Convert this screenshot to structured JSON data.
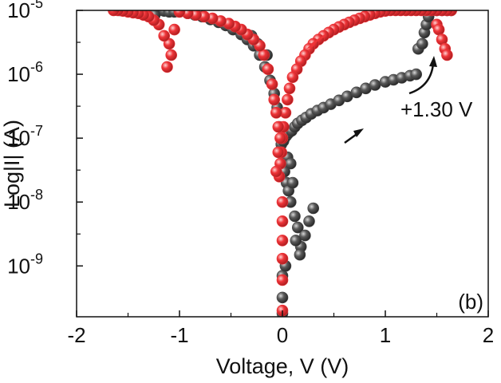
{
  "chart_data": {
    "type": "scatter",
    "panel_label": "(b)",
    "xlabel": "Voltage, V (V)",
    "ylabel": "Log|I| (A)",
    "xlim": [
      -2,
      2
    ],
    "ylim": [
      1.6e-10,
      1e-05
    ],
    "yscale": "log",
    "x_ticks": [
      {
        "value": -2,
        "label": "-2"
      },
      {
        "value": -1,
        "label": "-1"
      },
      {
        "value": 0,
        "label": "0"
      },
      {
        "value": 1,
        "label": "1"
      },
      {
        "value": 2,
        "label": "2"
      }
    ],
    "y_ticks": [
      {
        "value": 1e-09,
        "base": "10",
        "exp": "-9"
      },
      {
        "value": 1e-08,
        "base": "10",
        "exp": "-8"
      },
      {
        "value": 1e-07,
        "base": "10",
        "exp": "-7"
      },
      {
        "value": 1e-06,
        "base": "10",
        "exp": "-6"
      },
      {
        "value": 1e-05,
        "base": "10",
        "exp": "-5"
      }
    ],
    "annotation": "+1.30 V",
    "grid": false,
    "legend": "none",
    "series": [
      {
        "color": "#454545",
        "x": [
          -1.58,
          -1.52,
          -1.45,
          -1.38,
          -1.32,
          -1.26,
          -1.2,
          -1.15,
          -1.1,
          -1.05,
          -1.0,
          -0.92,
          -0.85,
          -0.78,
          -0.7,
          -0.62,
          -0.55,
          -0.48,
          -0.4,
          -0.34,
          -0.28,
          -0.22,
          -0.17,
          -0.12,
          -0.08,
          -0.05,
          -0.03,
          -0.01,
          0.0,
          0.0,
          0.0,
          0.0,
          0.01,
          0.02,
          0.04,
          0.06,
          0.09,
          0.12,
          0.15,
          0.19,
          0.23,
          0.28,
          0.34,
          0.4,
          0.47,
          0.55,
          0.63,
          0.72,
          0.81,
          0.9,
          1.0,
          1.08,
          1.16,
          1.24,
          1.3,
          1.32,
          1.36,
          1.38,
          1.4,
          1.42,
          1.45,
          1.5,
          1.55,
          1.6,
          1.64,
          0.02,
          0.04,
          0.06,
          0.08,
          0.12,
          0.15,
          0.18,
          0.22,
          0.26,
          0.3,
          0.05,
          0.08,
          0.1,
          0.13,
          0.17,
          0.03,
          -1.44,
          -1.38,
          -1.3,
          -1.24,
          -0.3,
          -0.24,
          -0.15
        ],
        "y": [
          1e-05,
          1e-05,
          1e-05,
          1e-05,
          1e-05,
          1e-05,
          1e-05,
          9.8e-06,
          9.5e-06,
          9.5e-06,
          9.5e-06,
          9e-06,
          8.5e-06,
          8e-06,
          7.2e-06,
          6.5e-06,
          5.8e-06,
          5e-06,
          4.2e-06,
          3.5e-06,
          2.8e-06,
          2e-06,
          1.3e-06,
          8e-07,
          5e-07,
          3e-07,
          1.5e-07,
          8e-08,
          3e-08,
          7e-10,
          3.2e-10,
          1.8e-10,
          9e-08,
          1e-07,
          1.1e-07,
          1.2e-07,
          1.3e-07,
          1.5e-07,
          1.7e-07,
          1.9e-07,
          2.1e-07,
          2.4e-07,
          2.7e-07,
          3e-07,
          3.4e-07,
          3.9e-07,
          4.5e-07,
          5.2e-07,
          6e-07,
          6.8e-07,
          7.6e-07,
          8.2e-07,
          8.8e-07,
          9.5e-07,
          1e-06,
          2.5e-06,
          3e-06,
          4.5e-06,
          6e-06,
          8e-06,
          1e-05,
          1e-05,
          1e-05,
          1e-05,
          1e-05,
          3e-08,
          2e-08,
          1.5e-08,
          1e-08,
          6e-09,
          4e-09,
          2e-09,
          3e-09,
          5e-09,
          8e-09,
          5e-08,
          4e-08,
          2e-08,
          2.5e-09,
          1.5e-09,
          1e-09,
          1e-05,
          1e-05,
          9e-06,
          8.5e-06,
          4e-06,
          3e-06,
          2e-06
        ]
      },
      {
        "color": "#ee3438",
        "x": [
          1.64,
          1.6,
          1.55,
          1.5,
          1.45,
          1.4,
          1.35,
          1.3,
          1.25,
          1.2,
          1.15,
          1.1,
          1.05,
          1.0,
          0.95,
          0.9,
          0.85,
          0.8,
          0.75,
          0.7,
          0.65,
          0.6,
          0.55,
          0.5,
          0.45,
          0.4,
          0.35,
          0.3,
          0.26,
          0.22,
          0.18,
          0.14,
          0.1,
          0.07,
          0.05,
          0.03,
          0.01,
          0.0,
          -0.01,
          -0.02,
          -0.03,
          -0.04,
          -0.06,
          -0.08,
          -0.1,
          -0.14,
          -0.18,
          -0.22,
          -0.28,
          -0.34,
          -0.4,
          -0.46,
          -0.52,
          -0.6,
          -0.68,
          -0.76,
          -0.84,
          -0.92,
          -1.0,
          -1.05,
          -1.1,
          -1.12,
          -1.08,
          -1.15,
          -1.2,
          -1.25,
          -1.3,
          -1.35,
          -1.4,
          -1.45,
          -1.5,
          -1.55,
          -1.6,
          -1.64,
          1.5,
          1.52,
          1.55,
          1.58,
          1.6,
          0.0,
          0.0,
          0.0,
          0.0,
          0.0,
          0.0,
          -0.02,
          -0.04,
          -0.06
        ],
        "y": [
          1e-05,
          1e-05,
          1e-05,
          1e-05,
          1e-05,
          1e-05,
          1e-05,
          1e-05,
          1e-05,
          1e-05,
          1e-05,
          1e-05,
          1e-05,
          9.8e-06,
          9.5e-06,
          9e-06,
          8.5e-06,
          8e-06,
          7.5e-06,
          7e-06,
          6.5e-06,
          6e-06,
          5.5e-06,
          5e-06,
          4.5e-06,
          4e-06,
          3.5e-06,
          3e-06,
          2.5e-06,
          2e-06,
          1.6e-06,
          1.2e-06,
          9e-07,
          6e-07,
          4e-07,
          2.5e-07,
          1.5e-07,
          1e-07,
          6e-08,
          4e-08,
          2.5e-08,
          1.5e-07,
          2.5e-07,
          4e-07,
          7e-07,
          1.2e-06,
          2e-06,
          2.8e-06,
          3.5e-06,
          4.2e-06,
          5e-06,
          5.6e-06,
          6.2e-06,
          6.8e-06,
          7.5e-06,
          8e-06,
          8.5e-06,
          9e-06,
          9.5e-06,
          5e-06,
          3e-06,
          1.3e-06,
          2e-06,
          4e-06,
          6e-06,
          7e-06,
          8e-06,
          8.5e-06,
          9e-06,
          9.2e-06,
          9.5e-06,
          9.8e-06,
          1e-05,
          1e-05,
          6e-06,
          5e-06,
          3.5e-06,
          2.5e-06,
          2e-06,
          1e-08,
          5e-09,
          2.5e-09,
          1.3e-09,
          6e-10,
          2e-10,
          1e-07,
          6e-08,
          3e-08
        ]
      }
    ]
  }
}
